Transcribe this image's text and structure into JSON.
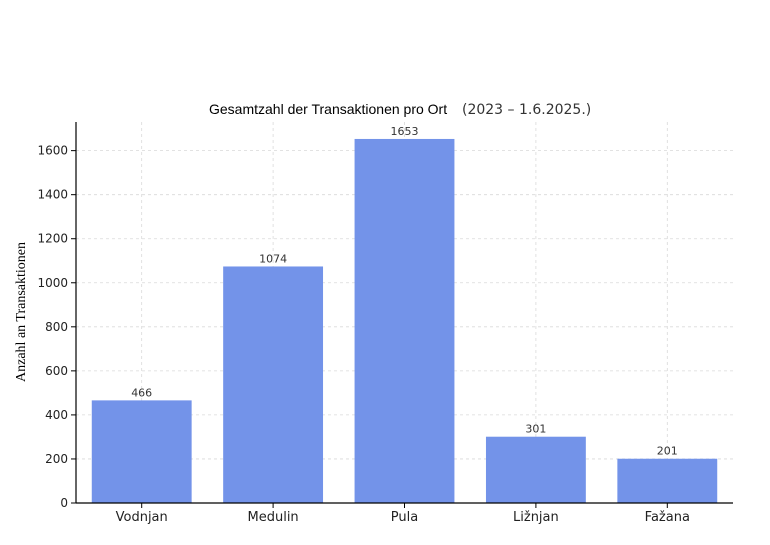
{
  "chart_data": {
    "type": "bar",
    "title": "Gesamtzahl der Transaktionen pro Ort",
    "subtitle": "(2023 – 1.6.2025.)",
    "xlabel": "",
    "ylabel": "Anzahl an Transaktionen",
    "categories": [
      "Vodnjan",
      "Medulin",
      "Pula",
      "Ližnjan",
      "Fažana"
    ],
    "values": [
      466,
      1074,
      1653,
      301,
      201
    ],
    "data_labels": [
      "466",
      "1074",
      "1653",
      "301",
      "201"
    ],
    "ylim": [
      0,
      1730
    ],
    "yticks": [
      0,
      200,
      400,
      600,
      800,
      1000,
      1200,
      1400,
      1600
    ],
    "grid": true,
    "legend": "none",
    "colors": {
      "bar": "#7393E9",
      "axis": "#000000",
      "grid": "#d9d9d9"
    }
  }
}
